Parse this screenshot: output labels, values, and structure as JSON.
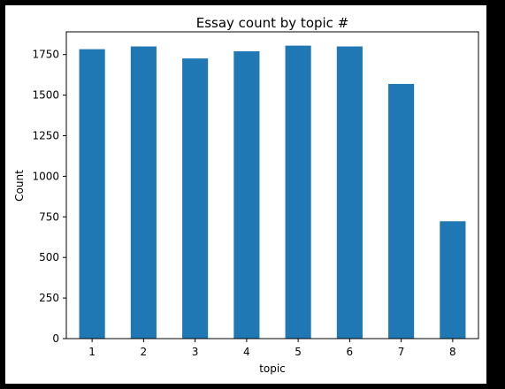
{
  "chart_data": {
    "type": "bar",
    "title": "Essay count by topic #",
    "xlabel": "topic",
    "ylabel": "Count",
    "categories": [
      "1",
      "2",
      "3",
      "4",
      "5",
      "6",
      "7",
      "8"
    ],
    "values": [
      1783,
      1800,
      1726,
      1770,
      1805,
      1800,
      1569,
      723
    ],
    "ylim": [
      0,
      1890
    ],
    "yticks": [
      0,
      250,
      500,
      750,
      1000,
      1250,
      1500,
      1750
    ],
    "grid": false,
    "bar_color": "#1f77b4"
  }
}
